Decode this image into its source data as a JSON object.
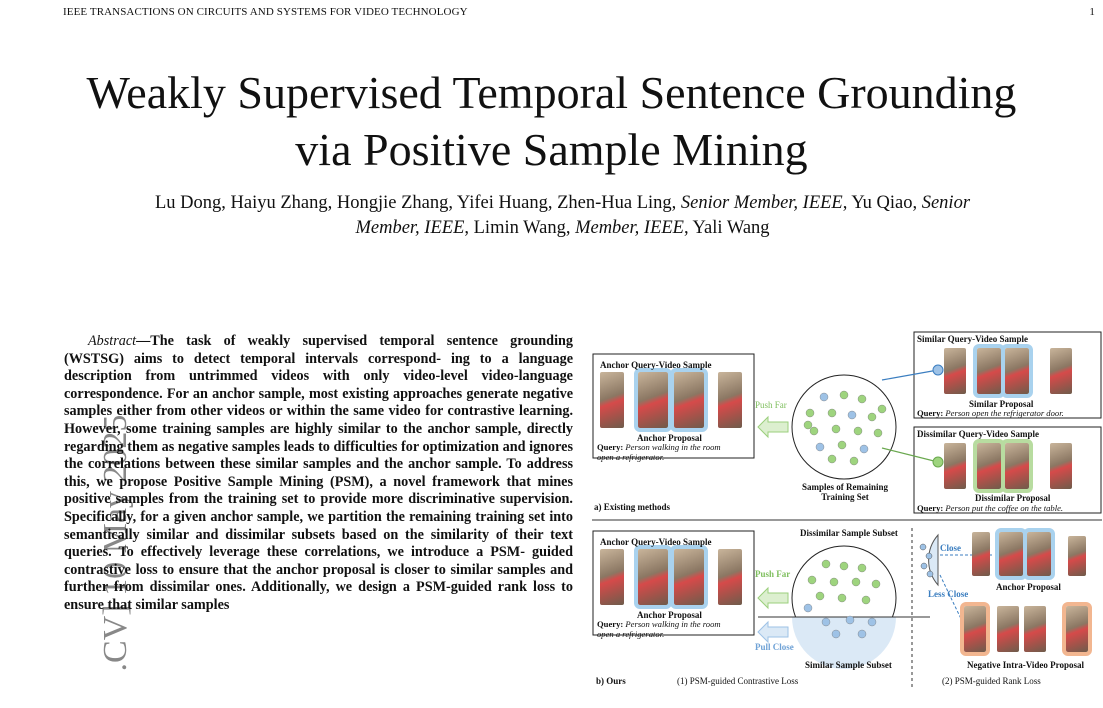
{
  "header": {
    "journal": "IEEE TRANSACTIONS ON CIRCUITS AND SYSTEMS FOR VIDEO TECHNOLOGY",
    "page_number": "1"
  },
  "title": {
    "line1": "Weakly Supervised Temporal Sentence Grounding",
    "line2": "via Positive Sample Mining"
  },
  "authors": {
    "line1_a": "Lu Dong, Haiyu Zhang, Hongjie Zhang, Yifei Huang, Zhen-Hua Ling,",
    "line1_b": "Senior Member, IEEE",
    "line1_c": ", Yu Qiao,",
    "line1_d": "Senior",
    "line2_a": "Member, IEEE",
    "line2_b": ", Limin Wang,",
    "line2_c": "Member, IEEE",
    "line2_d": ", Yali Wang"
  },
  "arxiv_stamp": ".CV]  10 May 2025",
  "abstract": {
    "lead": "Abstract",
    "dash": "—",
    "lines": [
      "The task of weakly supervised temporal sentence",
      "grounding (WSTSG) aims to detect temporal intervals correspond-",
      "ing to a language description from untrimmed videos with only",
      "video-level video-language correspondence. For an anchor sample,",
      "most existing approaches generate negative samples either from",
      "other videos or within the same video for contrastive learning.",
      "However, some training samples are highly similar to the anchor",
      "sample, directly regarding them as negative samples leads to",
      "difficulties for optimization and ignores the correlations between",
      "these similar samples and the anchor sample. To address this,",
      "we propose Positive Sample Mining (PSM), a novel framework",
      "that mines positive samples from the training set to provide more",
      "discriminative supervision. Specifically, for a given anchor sample,",
      "we partition the remaining training set into semantically similar",
      "and dissimilar subsets based on the similarity of their text queries.",
      "To effectively leverage these correlations, we introduce a PSM-",
      "guided contrastive loss to ensure that the anchor proposal is closer",
      "to similar samples and further from dissimilar ones. Additionally,",
      "we design a PSM-guided rank loss to ensure that similar samples"
    ]
  },
  "figure": {
    "top": {
      "anchor_box_title": "Anchor Query-Video Sample",
      "anchor_proposal": "Anchor Proposal",
      "query_label": "Query:",
      "anchor_query_line1": "Person walking in the room",
      "anchor_query_line2": "open a refrigerator.",
      "push_far": "Push Far",
      "samples_label_line1": "Samples of  Remaining",
      "samples_label_line2": "Training Set",
      "similar_box_title": "Similar Query-Video Sample",
      "similar_proposal": "Similar Proposal",
      "similar_query": "Person open the refrigerator door.",
      "dissimilar_box_title": "Dissimilar Query-Video Sample",
      "dissimilar_proposal": "Dissimilar Proposal",
      "dissimilar_query": "Person put the coffee on the table.",
      "section_label": "a) Existing methods"
    },
    "bottom": {
      "anchor_box_title": "Anchor Query-Video Sample",
      "anchor_proposal": "Anchor Proposal",
      "query_label": "Query:",
      "anchor_query_line1": "Person walking in the room",
      "anchor_query_line2": "open a refrigerator.",
      "dissimilar_subset": "Dissimilar Sample Subset",
      "similar_subset": "Similar Sample Subset",
      "push_far": "Push Far",
      "pull_close": "Pull Close",
      "close": "Close",
      "less_close": "Less Close",
      "right_anchor_proposal": "Anchor Proposal",
      "negative_proposal": "Negative Intra-Video Proposal",
      "section_label": "b) Ours",
      "caption1": "(1) PSM-guided Contrastive Loss",
      "caption2": "(2) PSM-guided Rank Loss"
    },
    "colors": {
      "blue_frame": "#a9d2ee",
      "green_frame": "#b8dca0",
      "orange_frame": "#f2b690",
      "dot_green": "#9ed47e",
      "dot_blue": "#9ec2e6"
    }
  }
}
